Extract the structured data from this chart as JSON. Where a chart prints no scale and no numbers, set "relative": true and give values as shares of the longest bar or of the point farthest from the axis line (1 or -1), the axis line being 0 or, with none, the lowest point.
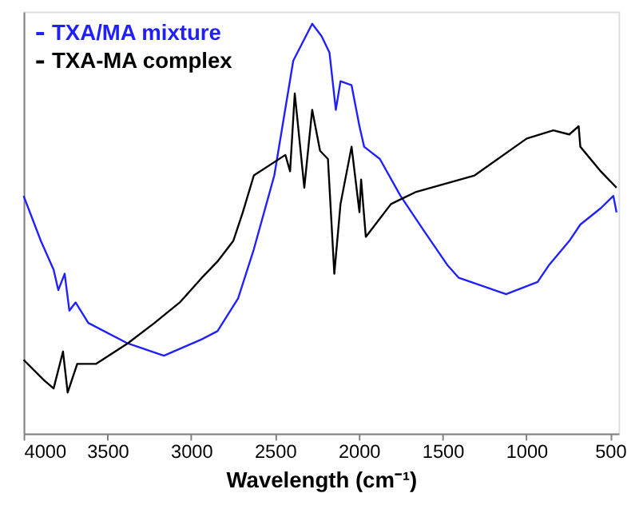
{
  "chart_data": {
    "type": "line",
    "relative": true,
    "xlabel": "Wavelength (cm⁻¹)",
    "xlim": [
      4000,
      450
    ],
    "xticks": [
      4000,
      3500,
      3000,
      2500,
      2000,
      1500,
      1000,
      500
    ],
    "grid": false,
    "legend": "top left",
    "tick_labels": "x",
    "series": [
      {
        "name": "TXA/MA mixture",
        "color": "#1f1fff",
        "x": [
          4000,
          3897,
          3821,
          3793,
          3755,
          3727,
          3690,
          3614,
          3379,
          3163,
          2937,
          2843,
          2720,
          2626,
          2504,
          2391,
          2278,
          2222,
          2175,
          2137,
          2109,
          2043,
          1996,
          1968,
          1874,
          1751,
          1620,
          1469,
          1403,
          1121,
          933,
          867,
          744,
          678,
          556,
          481,
          462
        ],
        "values": [
          0.58,
          0.47,
          0.4,
          0.35,
          0.39,
          0.3,
          0.32,
          0.27,
          0.22,
          0.19,
          0.23,
          0.25,
          0.33,
          0.45,
          0.63,
          0.91,
          1.0,
          0.97,
          0.93,
          0.79,
          0.86,
          0.85,
          0.75,
          0.7,
          0.67,
          0.58,
          0.5,
          0.41,
          0.38,
          0.34,
          0.37,
          0.41,
          0.47,
          0.51,
          0.55,
          0.58,
          0.54
        ]
      },
      {
        "name": "TXA-MA complex",
        "color": "#000000",
        "x": [
          4000,
          3878,
          3821,
          3765,
          3737,
          3680,
          3567,
          3379,
          3219,
          3068,
          2937,
          2843,
          2749,
          2692,
          2626,
          2438,
          2410,
          2382,
          2325,
          2278,
          2231,
          2184,
          2146,
          2109,
          2043,
          1996,
          1986,
          1958,
          1808,
          1657,
          1309,
          998,
          839,
          744,
          688,
          678,
          556,
          462
        ],
        "values": [
          0.18,
          0.13,
          0.11,
          0.2,
          0.1,
          0.17,
          0.17,
          0.22,
          0.27,
          0.32,
          0.38,
          0.42,
          0.47,
          0.54,
          0.63,
          0.68,
          0.64,
          0.83,
          0.6,
          0.79,
          0.69,
          0.67,
          0.39,
          0.56,
          0.7,
          0.54,
          0.62,
          0.48,
          0.56,
          0.59,
          0.63,
          0.72,
          0.74,
          0.73,
          0.75,
          0.7,
          0.64,
          0.6
        ]
      }
    ]
  }
}
